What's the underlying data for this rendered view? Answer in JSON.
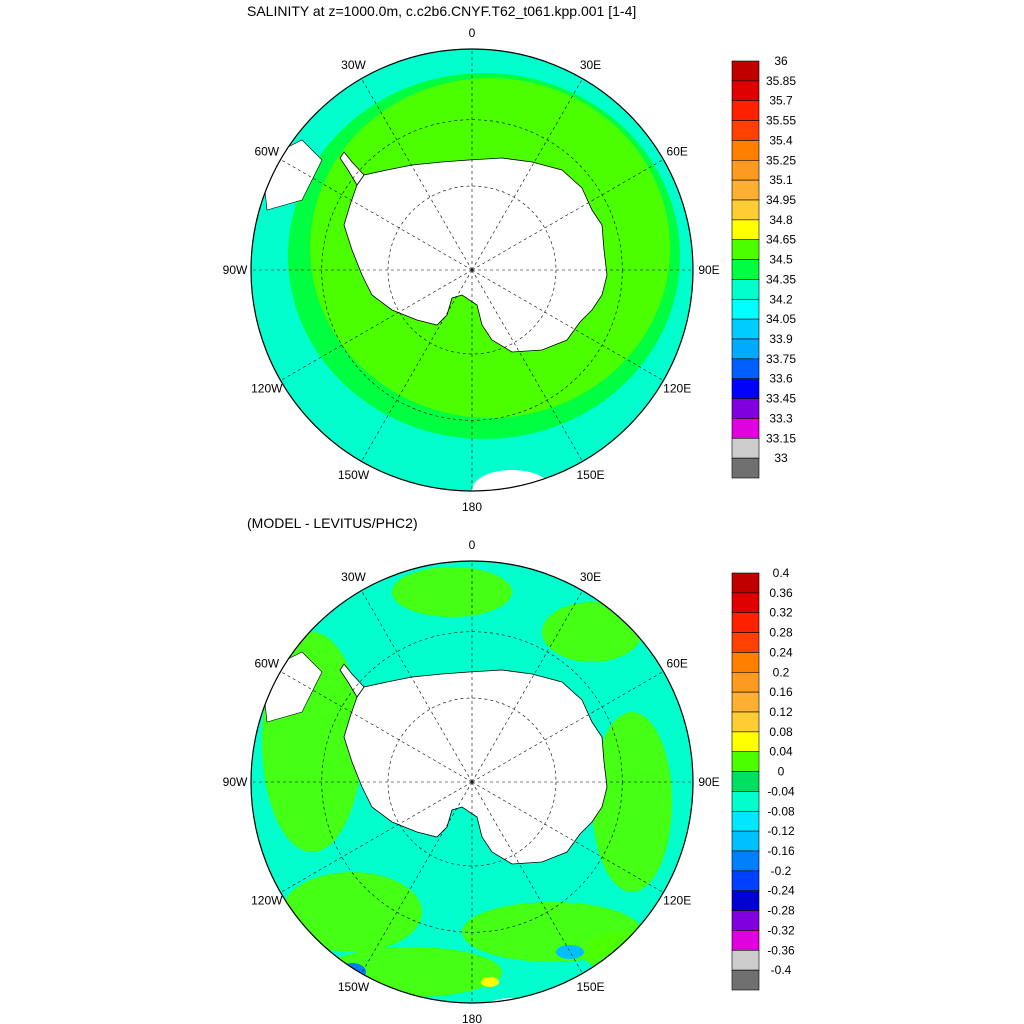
{
  "titles": {
    "top": "SALINITY at z=1000.0m, c.c2b6.CNYF.T62_t061.kpp.001 [1-4]",
    "bottom": "(MODEL - LEVITUS/PHC2)"
  },
  "longitude_labels": [
    "0",
    "30E",
    "60E",
    "90E",
    "120E",
    "150E",
    "180",
    "150W",
    "120W",
    "90W",
    "60W",
    "30W"
  ],
  "maps": [
    {
      "id": "salinity",
      "colorbar": {
        "labels": [
          "36",
          "35.85",
          "35.7",
          "35.55",
          "35.4",
          "35.25",
          "35.1",
          "34.95",
          "34.8",
          "34.65",
          "34.5",
          "34.35",
          "34.2",
          "34.05",
          "33.9",
          "33.75",
          "33.6",
          "33.45",
          "33.3",
          "33.15",
          "33"
        ],
        "colors": [
          "#c00000",
          "#e00000",
          "#ff2000",
          "#ff4000",
          "#ff8000",
          "#ff9a20",
          "#ffb030",
          "#ffcc33",
          "#ffff00",
          "#4cff00",
          "#00ff40",
          "#00ffcc",
          "#00ffff",
          "#00ccff",
          "#00aaff",
          "#0060ff",
          "#0000ff",
          "#8000e0",
          "#e000e0",
          "#cccccc",
          "#707070"
        ]
      }
    },
    {
      "id": "difference",
      "colorbar": {
        "labels": [
          "0.4",
          "0.36",
          "0.32",
          "0.28",
          "0.24",
          "0.2",
          "0.16",
          "0.12",
          "0.08",
          "0.04",
          "0",
          "-0.04",
          "-0.08",
          "-0.12",
          "-0.16",
          "-0.2",
          "-0.24",
          "-0.28",
          "-0.32",
          "-0.36",
          "-0.4"
        ],
        "colors": [
          "#c00000",
          "#e00000",
          "#ff2000",
          "#ff4000",
          "#ff8000",
          "#ff9a20",
          "#ffb030",
          "#ffcc33",
          "#ffff00",
          "#4cff00",
          "#00e060",
          "#00ffcc",
          "#00e8ff",
          "#00c0ff",
          "#0080ff",
          "#0040ff",
          "#0000d0",
          "#8000e0",
          "#e000e0",
          "#cccccc",
          "#707070"
        ]
      }
    }
  ]
}
